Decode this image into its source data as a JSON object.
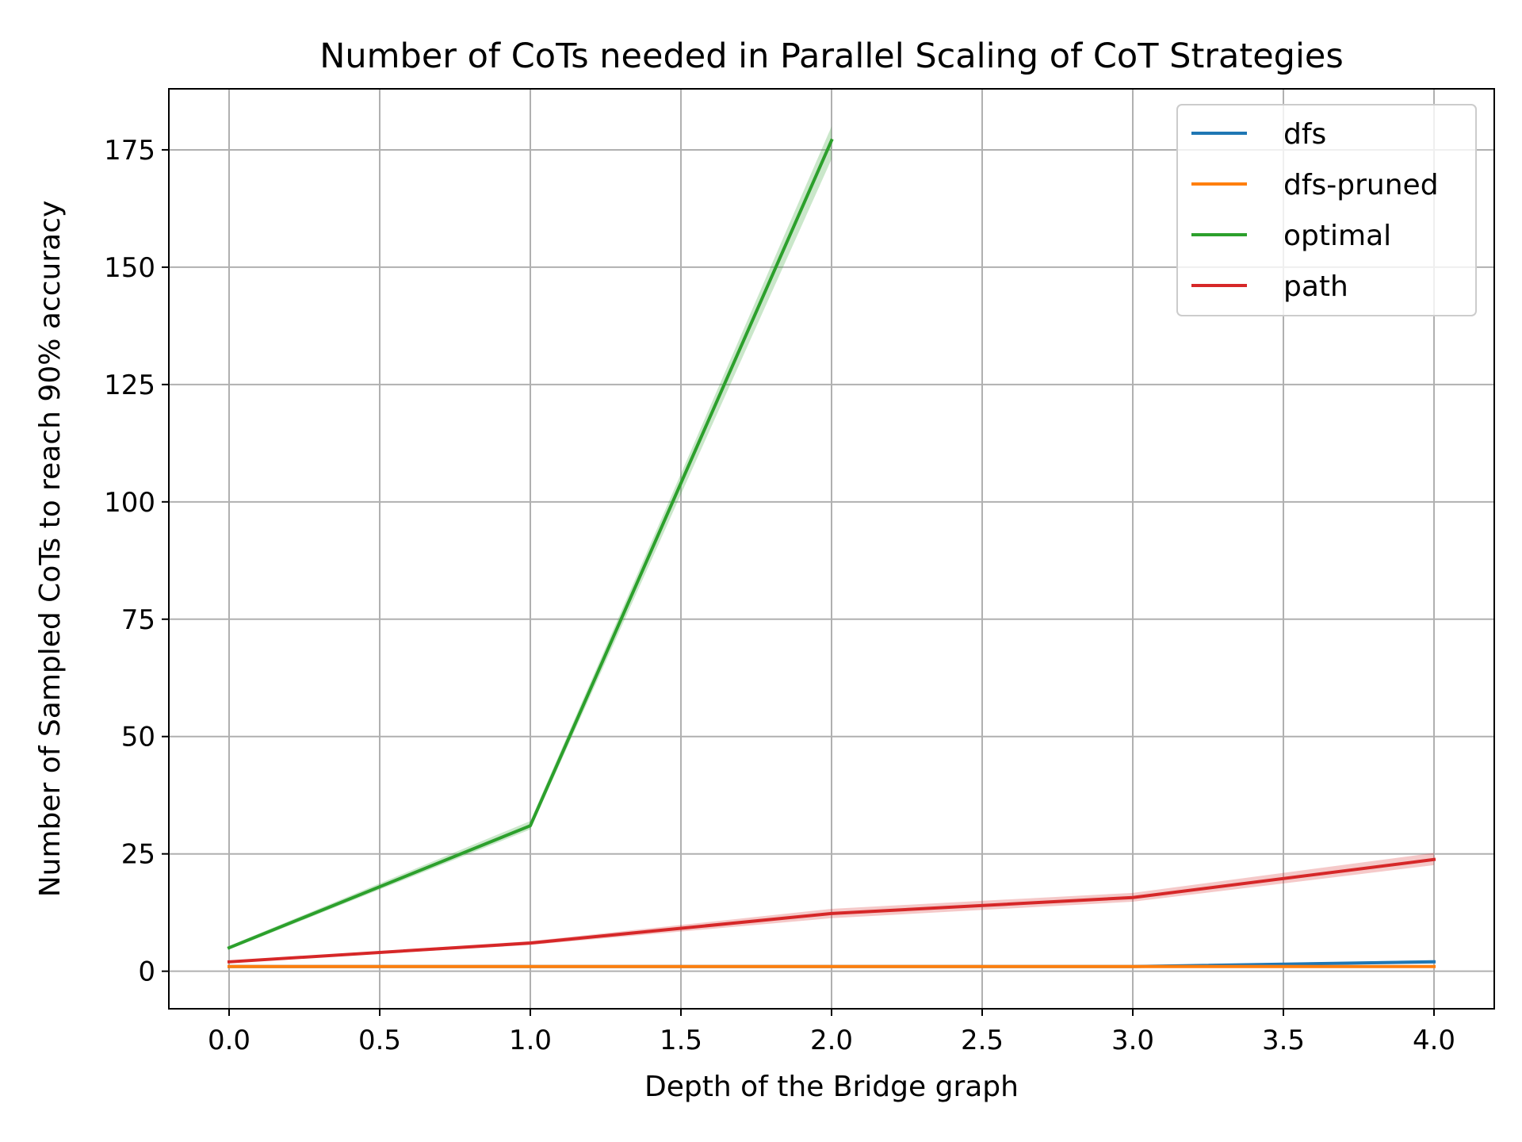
{
  "chart_data": {
    "type": "line",
    "title": "Number of CoTs needed in Parallel Scaling of CoT Strategies",
    "xlabel": "Depth of the Bridge graph",
    "ylabel": "Number of Sampled CoTs to reach 90% accuracy",
    "xlim": [
      -0.2,
      4.2
    ],
    "ylim": [
      -8,
      188
    ],
    "xticks": [
      "0.0",
      "0.5",
      "1.0",
      "1.5",
      "2.0",
      "2.5",
      "3.0",
      "3.5",
      "4.0"
    ],
    "yticks": [
      "0",
      "25",
      "50",
      "75",
      "100",
      "125",
      "150",
      "175"
    ],
    "grid": true,
    "legend_position": "top-right",
    "series": [
      {
        "name": "dfs",
        "color": "#1f77b4",
        "x": [
          0,
          1,
          2,
          3,
          4
        ],
        "y": [
          1,
          1,
          1,
          1,
          2
        ],
        "band_lower": [
          1,
          1,
          1,
          1,
          1.6
        ],
        "band_upper": [
          1,
          1,
          1,
          1,
          2.4
        ]
      },
      {
        "name": "dfs-pruned",
        "color": "#ff7f0e",
        "x": [
          0,
          1,
          2,
          3,
          4
        ],
        "y": [
          1,
          1,
          1,
          1,
          1
        ],
        "band_lower": [
          1,
          1,
          1,
          1,
          1
        ],
        "band_upper": [
          1,
          1,
          1,
          1,
          1
        ]
      },
      {
        "name": "optimal",
        "color": "#2ca02c",
        "x": [
          0,
          1,
          2
        ],
        "y": [
          5,
          31,
          177
        ],
        "band_lower": [
          4.6,
          30.2,
          173
        ],
        "band_upper": [
          5.4,
          32,
          180
        ]
      },
      {
        "name": "path",
        "color": "#d62728",
        "x": [
          0,
          1,
          2,
          3,
          4
        ],
        "y": [
          2,
          6,
          12.3,
          15.7,
          23.8
        ],
        "band_lower": [
          1.8,
          5.6,
          11.3,
          14.8,
          22.6
        ],
        "band_upper": [
          2.2,
          6.4,
          13.3,
          16.7,
          25.2
        ]
      }
    ]
  }
}
